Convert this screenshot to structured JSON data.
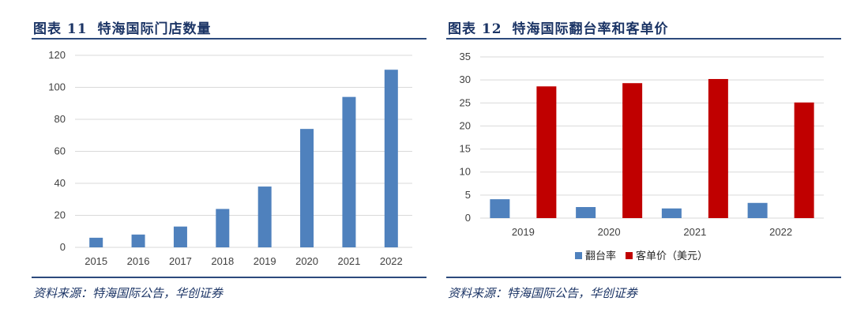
{
  "figures": [
    {
      "title_no": "图表 11",
      "title": "特海国际门店数量",
      "source": "资料来源：特海国际公告，华创证券"
    },
    {
      "title_no": "图表 12",
      "title": "特海国际翻台率和客单价",
      "source": "资料来源：特海国际公告，华创证券"
    }
  ],
  "colors": {
    "blue": "#4f81bd",
    "red": "#c00000",
    "grid": "#d9d9d9",
    "rule": "#2c4a7c"
  },
  "chart_data": [
    {
      "type": "bar",
      "title": "",
      "categories": [
        "2015",
        "2016",
        "2017",
        "2018",
        "2019",
        "2020",
        "2021",
        "2022"
      ],
      "series": [
        {
          "values": [
            6,
            8,
            13,
            24,
            38,
            74,
            94,
            111
          ]
        }
      ],
      "ylim": [
        0,
        120
      ],
      "yticks": [
        0,
        20,
        40,
        60,
        80,
        100,
        120
      ],
      "grid": true,
      "legend": "none"
    },
    {
      "type": "bar",
      "title": "",
      "categories": [
        "2019",
        "2020",
        "2021",
        "2022"
      ],
      "series": [
        {
          "name": "翻台率",
          "values": [
            4.1,
            2.4,
            2.1,
            3.3
          ]
        },
        {
          "name": "客单价（美元）",
          "values": [
            28.6,
            29.3,
            30.2,
            25.1
          ]
        }
      ],
      "ylim": [
        0,
        35
      ],
      "yticks": [
        0,
        5,
        10,
        15,
        20,
        25,
        30,
        35
      ],
      "grid": true,
      "legend": "bottom"
    }
  ]
}
